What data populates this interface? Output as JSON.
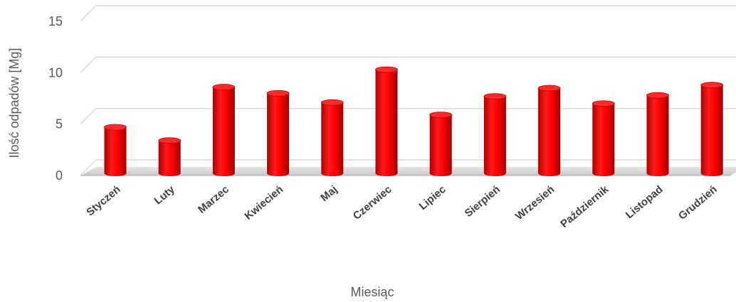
{
  "chart_data": {
    "type": "bar",
    "title": "",
    "xlabel": "Miesiąc",
    "ylabel": "Ilość odpadów [Mg]",
    "ylim": [
      0,
      15
    ],
    "yticks": [
      "0",
      "5",
      "10",
      "15"
    ],
    "grid": true,
    "legend": "none",
    "bar_color": "#ff0000",
    "categories": [
      "Styczeń",
      "Luty",
      "Marzec",
      "Kwiecień",
      "Maj",
      "Czerwiec",
      "Lipiec",
      "Sierpień",
      "Wrzesień",
      "Październik",
      "Listopad",
      "Grudzień"
    ],
    "series": [
      {
        "values": [
          4.7,
          3.4,
          8.6,
          8.0,
          7.1,
          10.3,
          5.9,
          7.7,
          8.5,
          7.0,
          7.8,
          8.8
        ]
      }
    ]
  }
}
